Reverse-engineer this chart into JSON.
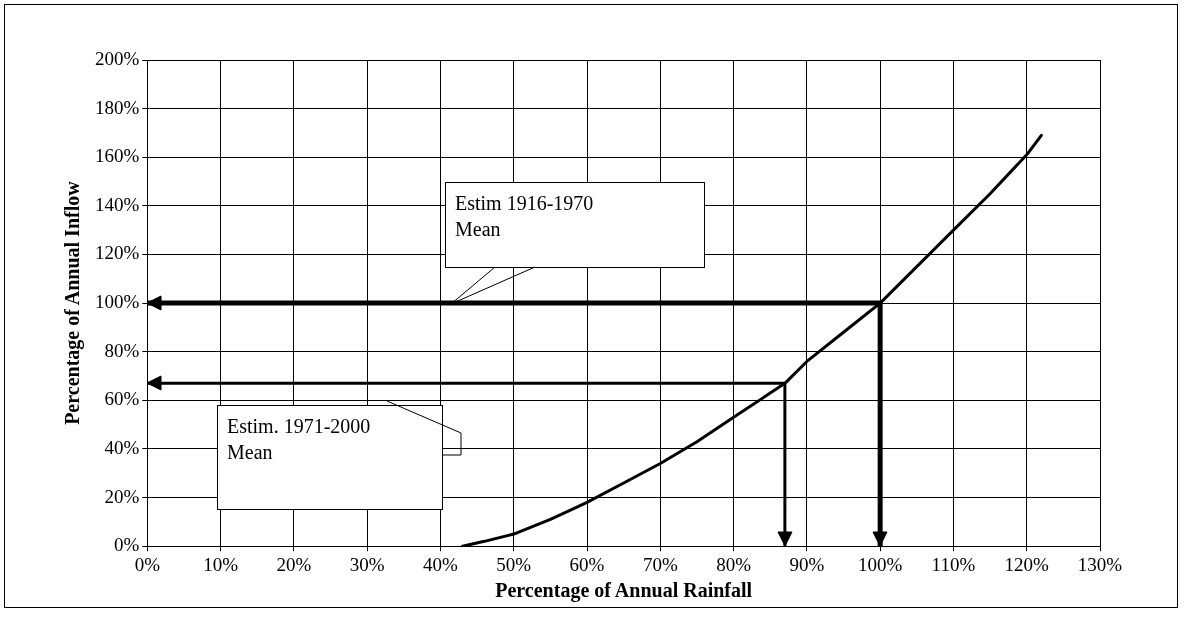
{
  "chart_data": {
    "type": "line",
    "xlabel": "Percentage of Annual Rainfall",
    "ylabel": "Percentage of Annual Inflow",
    "xlim": [
      0,
      130
    ],
    "xticks": [
      {
        "value": 0,
        "label": "0%"
      },
      {
        "value": 10,
        "label": "10%"
      },
      {
        "value": 20,
        "label": "20%"
      },
      {
        "value": 30,
        "label": "30%"
      },
      {
        "value": 40,
        "label": "40%"
      },
      {
        "value": 50,
        "label": "50%"
      },
      {
        "value": 60,
        "label": "60%"
      },
      {
        "value": 70,
        "label": "70%"
      },
      {
        "value": 80,
        "label": "80%"
      },
      {
        "value": 90,
        "label": "90%"
      },
      {
        "value": 100,
        "label": "100%"
      },
      {
        "value": 110,
        "label": "110%"
      },
      {
        "value": 120,
        "label": "120%"
      },
      {
        "value": 130,
        "label": "130%"
      }
    ],
    "ylim": [
      0,
      200
    ],
    "yticks": [
      {
        "value": 0,
        "label": "0%"
      },
      {
        "value": 20,
        "label": "20%"
      },
      {
        "value": 40,
        "label": "40%"
      },
      {
        "value": 60,
        "label": "60%"
      },
      {
        "value": 80,
        "label": "80%"
      },
      {
        "value": 100,
        "label": "100%"
      },
      {
        "value": 120,
        "label": "120%"
      },
      {
        "value": 140,
        "label": "140%"
      },
      {
        "value": 160,
        "label": "160%"
      },
      {
        "value": 180,
        "label": "180%"
      },
      {
        "value": 200,
        "label": "200%"
      }
    ],
    "series": [
      {
        "color": "#000000",
        "x": [
          43,
          46,
          50,
          55,
          60,
          65,
          70,
          75,
          80,
          85,
          87,
          90,
          95,
          100,
          105,
          110,
          115,
          120,
          122
        ],
        "values": [
          0,
          2,
          5,
          11,
          18,
          26,
          34,
          43,
          53,
          63,
          67,
          76,
          88,
          100,
          115,
          130,
          145,
          161,
          169
        ]
      },
      {
        "color": "#000000",
        "x": [
          0,
          100,
          100
        ],
        "values": [
          100,
          100,
          0
        ]
      },
      {
        "color": "#000000",
        "x": [
          0,
          87,
          87
        ],
        "values": [
          67,
          67,
          0
        ]
      }
    ],
    "annotations": [
      "Estim 1916-1970\nMean",
      "Estim. 1971-2000\nMean"
    ],
    "grid": true,
    "legend": false,
    "marker": "none",
    "line_style": "solid"
  }
}
